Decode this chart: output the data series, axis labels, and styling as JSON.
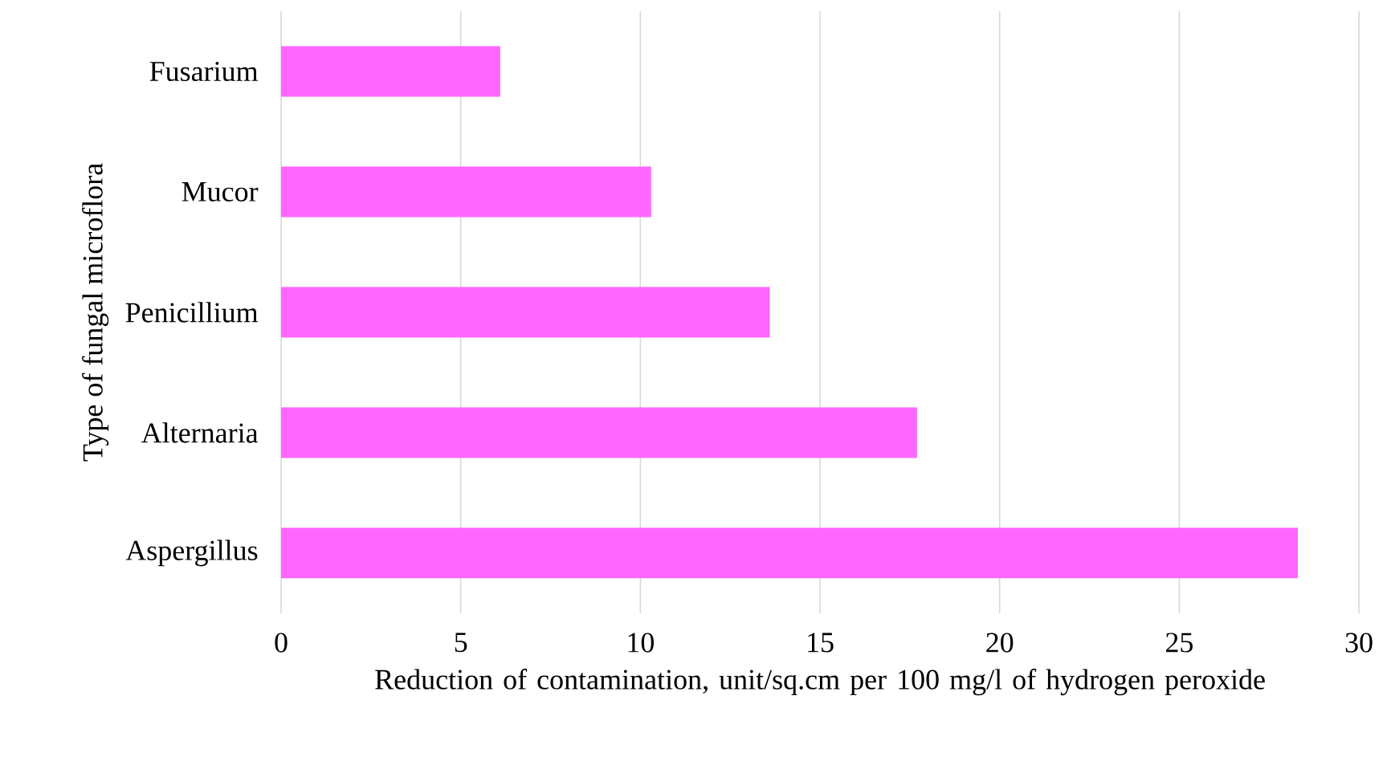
{
  "chart_data": {
    "type": "bar",
    "orientation": "horizontal",
    "categories": [
      "Fusarium",
      "Mucor",
      "Penicillium",
      "Alternaria",
      "Aspergillus"
    ],
    "values": [
      6.1,
      10.3,
      13.6,
      17.7,
      28.3
    ],
    "color": "#ff66ff",
    "xlim": [
      0,
      30
    ],
    "xticks": [
      0,
      5,
      10,
      15,
      20,
      25,
      30
    ],
    "xlabel": "Reduction of contamination, unit/sq.cm per 100 mg/l of hydrogen peroxide",
    "ylabel": "Type of fungal microflora",
    "grid": "x"
  }
}
